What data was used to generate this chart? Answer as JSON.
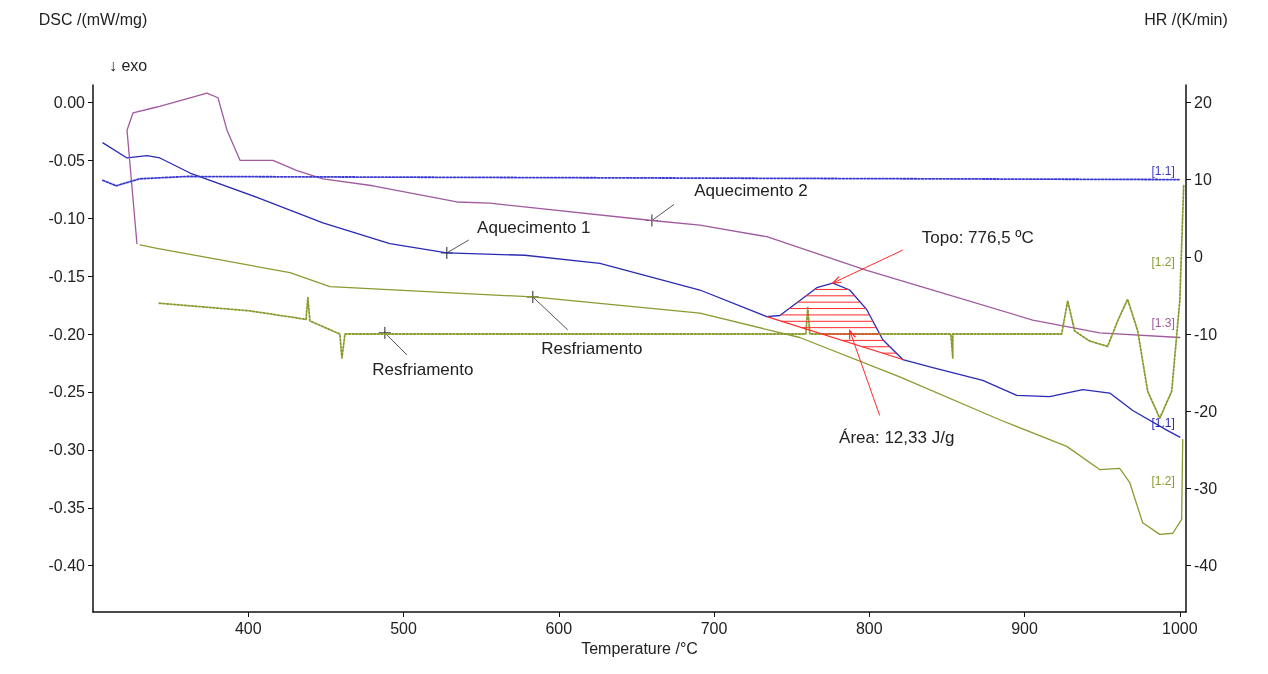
{
  "chart_data": {
    "type": "line",
    "xlabel": "Temperature /°C",
    "ylabel": "DSC /(mW/mg)",
    "y2label": "HR /(K/min)",
    "xlim": [
      300,
      1004
    ],
    "xticks": [
      400,
      500,
      600,
      700,
      800,
      900,
      1000
    ],
    "ylim": [
      -0.44,
      0.015
    ],
    "yticks": [
      {
        "value": 0,
        "label": "0.00"
      },
      {
        "value": -0.05,
        "label": "-0.05"
      },
      {
        "value": -0.1,
        "label": "-0.10"
      },
      {
        "value": -0.15,
        "label": "-0.15"
      },
      {
        "value": -0.2,
        "label": "-0.20"
      },
      {
        "value": -0.25,
        "label": "-0.25"
      },
      {
        "value": -0.3,
        "label": "-0.30"
      },
      {
        "value": -0.35,
        "label": "-0.35"
      },
      {
        "value": -0.4,
        "label": "-0.40"
      }
    ],
    "y2lim": [
      -46,
      22.25
    ],
    "y2ticks": [
      20,
      10,
      0,
      -10,
      -20,
      -30,
      -40
    ],
    "grid": false,
    "marker": "none",
    "line_style": "solid",
    "series": [
      {
        "color": "#2a2ab5",
        "x": [
          306.4,
          321.9,
          334.8,
          343.1,
          362.5,
          405.6,
          448.1,
          491.2,
          527.9,
          578.2,
          626.5,
          690.9,
          734.0,
          742.4,
          755.3,
          766.2,
          776.5,
          787.4,
          798.4,
          808.7,
          821.6,
          840.9,
          873.1,
          895.0,
          916.2,
          937.5,
          954.9,
          969.7,
          991.6,
          1000
        ],
        "values": [
          -0.035,
          -0.048,
          -0.046,
          -0.048,
          -0.061,
          -0.082,
          -0.104,
          -0.122,
          -0.13,
          -0.132,
          -0.139,
          -0.162,
          -0.185,
          -0.184,
          -0.171,
          -0.16,
          -0.156,
          -0.162,
          -0.179,
          -0.205,
          -0.222,
          -0.229,
          -0.24,
          -0.253,
          -0.254,
          -0.248,
          -0.251,
          -0.266,
          -0.283,
          -0.289
        ]
      },
      {
        "color": "#a05aa0",
        "x": [
          328.3,
          321.9,
          325.8,
          341.2,
          373.4,
          380.5,
          386.3,
          394.7,
          415.9,
          431.4,
          448.1,
          480.3,
          534.4,
          555.6,
          660.0,
          690.9,
          734.0,
          798.4,
          840.9,
          905.3,
          948.4,
          1000
        ],
        "values": [
          -0.122,
          -0.024,
          -0.009,
          -0.004,
          0.008,
          0.004,
          -0.024,
          -0.05,
          -0.05,
          -0.059,
          -0.066,
          -0.072,
          -0.086,
          -0.087,
          -0.102,
          -0.106,
          -0.116,
          -0.145,
          -0.162,
          -0.188,
          -0.199,
          -0.203
        ]
      },
      {
        "color": "#8c9a30",
        "x": [
          1001.9,
          1001.2,
          995.5,
          987.1,
          976.1,
          967.7,
          961.3,
          948.4,
          927.2,
          884.0,
          819.6,
          755.2,
          690.9,
          583.3,
          452.6,
          426.9,
          341.2,
          330.3
        ],
        "values": [
          -0.291,
          -0.36,
          -0.372,
          -0.373,
          -0.363,
          -0.328,
          -0.316,
          -0.317,
          -0.297,
          -0.274,
          -0.237,
          -0.203,
          -0.182,
          -0.168,
          -0.159,
          -0.147,
          -0.126,
          -0.123
        ]
      },
      {
        "color": "#3a3ad0",
        "axis": "y2",
        "line_style": "dotted",
        "x": [
          306.4,
          315,
          330,
          360,
          1000
        ],
        "values": [
          9.9,
          9.2,
          10.1,
          10.4,
          10
        ]
      },
      {
        "color": "#8c9a30",
        "axis": "y2",
        "line_style": "dotted",
        "x": [
          1002.5,
          1000,
          994.8,
          987.1,
          979.3,
          972.9,
          966.4,
          960,
          953.5,
          941.9,
          932.3,
          927.8,
          923.9,
          853.8,
          853.8,
          852.5,
          761.7,
          760.4,
          759.1,
          462.3,
          460.3,
          459.0,
          439.7,
          438.4,
          437.2,
          401,
          341.9
        ],
        "values": [
          9.2,
          -5.7,
          -17.4,
          -20.9,
          -17.4,
          -9.6,
          -5.5,
          -8.3,
          -11.6,
          -10.9,
          -9.6,
          -5.7,
          -10,
          -10,
          -13.1,
          -10,
          -10,
          -6.6,
          -10,
          -10,
          -13.1,
          -10,
          -8.3,
          -5.3,
          -8.1,
          -7.0,
          -6.0
        ]
      }
    ],
    "annotations": [
      "↓ exo",
      {
        "text": "Aquecimento 1",
        "x": 527.9,
        "y": -0.13
      },
      {
        "text": "Aquecimento 2",
        "x": 660.0,
        "y": -0.102
      },
      {
        "text": "Resfriamento",
        "x": 583.3,
        "y": -0.168
      },
      {
        "text": "Resfriamento",
        "x": 488.0,
        "y": -0.199
      },
      {
        "text": "Topo: 776,5 ºC",
        "x": 776.5,
        "y": -0.156
      },
      {
        "text": "Área: 12,33 J/g",
        "x": 787.4,
        "y": -0.197
      },
      {
        "text": "[1.1]",
        "x": 1000,
        "y": -0.066
      },
      {
        "text": "[1.2]",
        "x": 1000,
        "y": -0.145
      },
      {
        "text": "[1.3]",
        "x": 1000,
        "y": -0.197
      },
      {
        "text": "[1.1]",
        "x": 1000,
        "y": -0.284
      },
      {
        "text": "[1.2]",
        "x": 1000,
        "y": -0.334
      }
    ]
  }
}
